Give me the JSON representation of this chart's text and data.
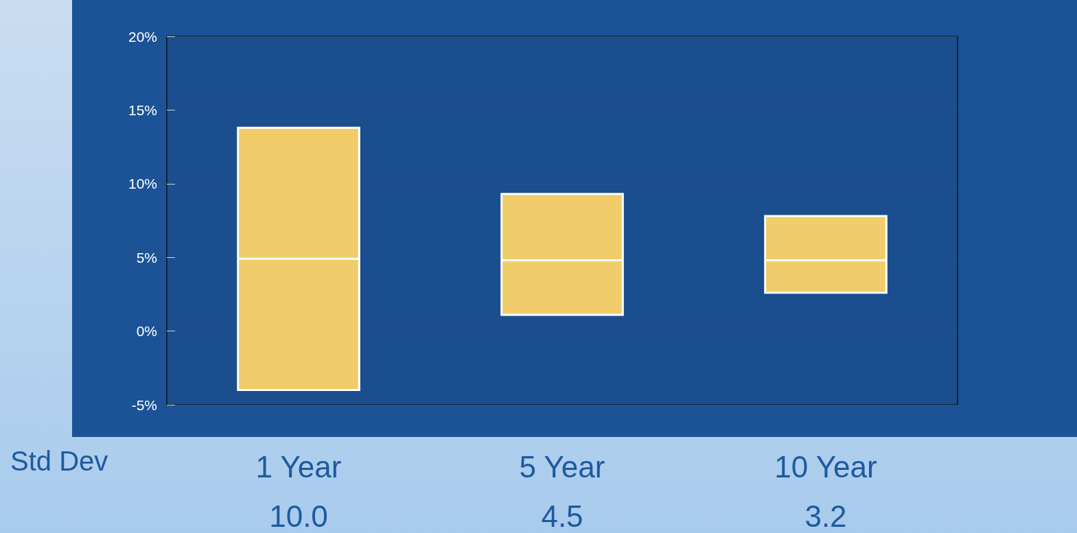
{
  "chart_data": {
    "type": "box",
    "categories": [
      "1 Year",
      "5 Year",
      "10 Year"
    ],
    "boxes": [
      {
        "low": -4.0,
        "q1": -4.0,
        "median": 4.9,
        "q3": 13.8,
        "high": 13.8
      },
      {
        "low": 1.1,
        "q1": 1.1,
        "median": 4.8,
        "q3": 9.3,
        "high": 9.3
      },
      {
        "low": 2.6,
        "q1": 2.6,
        "median": 4.8,
        "q3": 7.8,
        "high": 7.8
      }
    ],
    "color": "#f0cd6a",
    "ylim": [
      -5,
      20
    ],
    "yticks": [
      {
        "value": -5,
        "label": "-5%"
      },
      {
        "value": 0,
        "label": "0%"
      },
      {
        "value": 5,
        "label": "5%"
      },
      {
        "value": 10,
        "label": "10%"
      },
      {
        "value": 15,
        "label": "15%"
      },
      {
        "value": 20,
        "label": "20%"
      }
    ],
    "grid": "y",
    "annotations": [
      "Std Dev",
      "10.0",
      "4.5",
      "3.2"
    ]
  }
}
